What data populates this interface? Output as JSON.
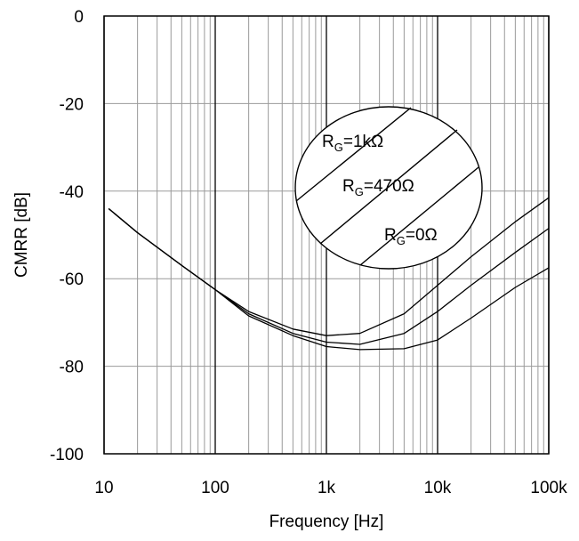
{
  "chart_data": {
    "type": "line",
    "title": "",
    "xlabel": "Frequency [Hz]",
    "ylabel": "CMRR [dB]",
    "x_scale": "log",
    "xlim": [
      10,
      100000
    ],
    "ylim": [
      -100,
      0
    ],
    "x_ticks": [
      10,
      100,
      1000,
      10000,
      100000
    ],
    "x_tick_labels": [
      "10",
      "100",
      "1k",
      "10k",
      "100k"
    ],
    "y_ticks": [
      0,
      -20,
      -40,
      -60,
      -80,
      -100
    ],
    "y_tick_labels": [
      "0",
      "-20",
      "-40",
      "-60",
      "-80",
      "-100"
    ],
    "grid": true,
    "series": [
      {
        "name": "RG=1kΩ",
        "points": [
          [
            11,
            -44
          ],
          [
            20,
            -49.5
          ],
          [
            50,
            -57
          ],
          [
            100,
            -62.5
          ],
          [
            200,
            -67.5
          ],
          [
            500,
            -71.5
          ],
          [
            1000,
            -73
          ],
          [
            2000,
            -72.5
          ],
          [
            5000,
            -68
          ],
          [
            10000,
            -61.5
          ],
          [
            20000,
            -55
          ],
          [
            50000,
            -47
          ],
          [
            100000,
            -41.5
          ]
        ]
      },
      {
        "name": "RG=470Ω",
        "points": [
          [
            11,
            -44
          ],
          [
            20,
            -49.5
          ],
          [
            50,
            -57
          ],
          [
            100,
            -62.5
          ],
          [
            200,
            -68
          ],
          [
            500,
            -72.5
          ],
          [
            1000,
            -74.5
          ],
          [
            2000,
            -75
          ],
          [
            5000,
            -72.5
          ],
          [
            10000,
            -67.5
          ],
          [
            20000,
            -61.5
          ],
          [
            50000,
            -54
          ],
          [
            100000,
            -48.5
          ]
        ]
      },
      {
        "name": "RG=0Ω",
        "points": [
          [
            11,
            -44
          ],
          [
            20,
            -49.5
          ],
          [
            50,
            -57
          ],
          [
            100,
            -62.5
          ],
          [
            200,
            -68.5
          ],
          [
            500,
            -73
          ],
          [
            1000,
            -75.5
          ],
          [
            2000,
            -76.2
          ],
          [
            5000,
            -76
          ],
          [
            10000,
            -74
          ],
          [
            20000,
            -69
          ],
          [
            50000,
            -62
          ],
          [
            100000,
            -57.5
          ]
        ]
      }
    ],
    "annotations": [
      {
        "main": "R",
        "sub": "G",
        "rest": "=1kΩ"
      },
      {
        "main": "R",
        "sub": "G",
        "rest": "=470Ω"
      },
      {
        "main": "R",
        "sub": "G",
        "rest": "=0Ω"
      }
    ]
  }
}
